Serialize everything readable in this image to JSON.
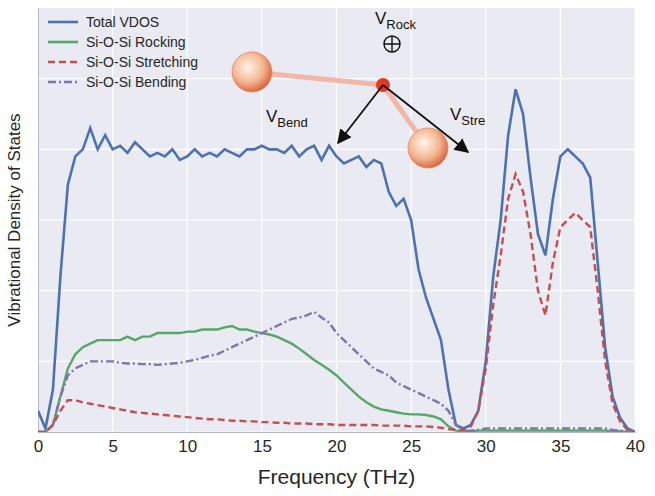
{
  "chart_data": {
    "type": "line",
    "x_label": "Frequency (THz)",
    "y_label": "Vibrational Density of States",
    "x": [
      0,
      0.5,
      1,
      1.5,
      2,
      2.5,
      3,
      3.5,
      4,
      4.5,
      5,
      5.5,
      6,
      6.5,
      7,
      7.5,
      8,
      8.5,
      9,
      9.5,
      10,
      10.5,
      11,
      11.5,
      12,
      12.5,
      13,
      13.5,
      14,
      14.5,
      15,
      15.5,
      16,
      16.5,
      17,
      17.5,
      18,
      18.5,
      19,
      19.5,
      20,
      20.5,
      21,
      21.5,
      22,
      22.5,
      23,
      23.5,
      24,
      24.5,
      25,
      25.5,
      26,
      26.5,
      27,
      27.5,
      28,
      28.5,
      29,
      29.5,
      30,
      30.5,
      31,
      31.5,
      32,
      32.5,
      33,
      33.5,
      34,
      34.5,
      35,
      35.5,
      36,
      36.5,
      37,
      37.5,
      38,
      38.5,
      39,
      39.5,
      40
    ],
    "series": [
      {
        "name": "Total VDOS",
        "color": "#4c72b0",
        "line_style": "solid",
        "values": [
          0.3,
          0.05,
          0.6,
          2.2,
          3.5,
          3.9,
          4.0,
          4.3,
          4.0,
          4.2,
          4.0,
          4.05,
          3.95,
          4.1,
          4.0,
          3.9,
          3.95,
          3.9,
          4.0,
          3.85,
          3.9,
          4.0,
          3.9,
          3.95,
          3.9,
          4.0,
          3.95,
          3.9,
          4.0,
          4.0,
          4.05,
          4.0,
          4.0,
          3.95,
          4.05,
          3.9,
          4.0,
          4.05,
          3.85,
          4.05,
          3.9,
          3.8,
          3.85,
          3.9,
          3.75,
          3.85,
          3.8,
          3.4,
          3.2,
          3.3,
          3.0,
          2.3,
          1.9,
          1.6,
          1.3,
          0.6,
          0.1,
          0.05,
          0.1,
          0.3,
          1.0,
          2.2,
          3.0,
          4.2,
          4.85,
          4.5,
          3.6,
          2.8,
          2.5,
          3.3,
          3.9,
          4.0,
          3.9,
          3.8,
          3.6,
          2.4,
          1.2,
          0.5,
          0.2,
          0.05,
          0.0
        ]
      },
      {
        "name": "Si-O-Si Rocking",
        "color": "#55a868",
        "line_style": "solid",
        "values": [
          0,
          0,
          0.1,
          0.5,
          0.9,
          1.1,
          1.2,
          1.25,
          1.3,
          1.3,
          1.3,
          1.3,
          1.35,
          1.3,
          1.35,
          1.35,
          1.4,
          1.4,
          1.4,
          1.4,
          1.42,
          1.42,
          1.45,
          1.45,
          1.45,
          1.48,
          1.5,
          1.45,
          1.45,
          1.42,
          1.4,
          1.38,
          1.35,
          1.3,
          1.25,
          1.18,
          1.1,
          1.02,
          0.95,
          0.88,
          0.8,
          0.7,
          0.6,
          0.5,
          0.42,
          0.36,
          0.32,
          0.3,
          0.28,
          0.26,
          0.25,
          0.25,
          0.24,
          0.22,
          0.18,
          0.08,
          0.02,
          0.01,
          0.01,
          0.02,
          0.02,
          0.02,
          0.02,
          0.02,
          0.02,
          0.02,
          0.02,
          0.02,
          0.02,
          0.02,
          0.02,
          0.02,
          0.02,
          0.02,
          0.02,
          0.02,
          0.02,
          0.01,
          0.01,
          0.0,
          0.0
        ]
      },
      {
        "name": "Si-O-Si Stretching",
        "color": "#c44e52",
        "line_style": "dashed",
        "values": [
          0,
          0,
          0.1,
          0.3,
          0.45,
          0.45,
          0.42,
          0.4,
          0.38,
          0.36,
          0.34,
          0.32,
          0.3,
          0.28,
          0.27,
          0.26,
          0.25,
          0.24,
          0.23,
          0.22,
          0.21,
          0.2,
          0.19,
          0.18,
          0.18,
          0.17,
          0.16,
          0.16,
          0.15,
          0.15,
          0.14,
          0.14,
          0.13,
          0.13,
          0.12,
          0.12,
          0.12,
          0.11,
          0.11,
          0.11,
          0.1,
          0.1,
          0.1,
          0.1,
          0.1,
          0.1,
          0.09,
          0.09,
          0.09,
          0.09,
          0.08,
          0.08,
          0.08,
          0.07,
          0.06,
          0.04,
          0.03,
          0.03,
          0.08,
          0.3,
          0.9,
          1.8,
          2.5,
          3.3,
          3.65,
          3.4,
          2.8,
          2.0,
          1.65,
          2.4,
          2.9,
          3.0,
          3.1,
          3.0,
          2.9,
          2.0,
          1.0,
          0.4,
          0.15,
          0.03,
          0.0
        ]
      },
      {
        "name": "Si-O-Si Bending",
        "color": "#8172b2",
        "line_style": "dashdot",
        "values": [
          0,
          0,
          0.1,
          0.5,
          0.8,
          0.9,
          0.95,
          1.0,
          1.0,
          1.0,
          1.0,
          0.98,
          0.97,
          0.97,
          0.96,
          0.96,
          0.95,
          0.96,
          0.97,
          0.98,
          1.0,
          1.02,
          1.05,
          1.08,
          1.1,
          1.15,
          1.2,
          1.25,
          1.3,
          1.35,
          1.4,
          1.45,
          1.5,
          1.55,
          1.6,
          1.62,
          1.65,
          1.7,
          1.62,
          1.55,
          1.4,
          1.3,
          1.2,
          1.1,
          1.0,
          0.9,
          0.85,
          0.8,
          0.7,
          0.65,
          0.6,
          0.55,
          0.5,
          0.45,
          0.4,
          0.3,
          0.1,
          0.02,
          0.02,
          0.03,
          0.05,
          0.05,
          0.05,
          0.05,
          0.05,
          0.05,
          0.05,
          0.05,
          0.05,
          0.05,
          0.05,
          0.05,
          0.05,
          0.05,
          0.05,
          0.05,
          0.05,
          0.03,
          0.02,
          0.0,
          0.0
        ]
      }
    ],
    "xlim": [
      0,
      40
    ],
    "xticks": [
      0,
      5,
      10,
      15,
      20,
      25,
      30,
      35,
      40
    ],
    "ylim": [
      0,
      6
    ],
    "yticks": [
      0,
      1,
      2,
      3,
      4,
      5
    ],
    "tick_labels": "x",
    "grid": true,
    "legend": "upper left",
    "annotations": [
      {
        "text": "V",
        "sub": "Rock"
      },
      {
        "text": "V",
        "sub": "Bend"
      },
      {
        "text": "V",
        "sub": "Stre"
      }
    ]
  }
}
